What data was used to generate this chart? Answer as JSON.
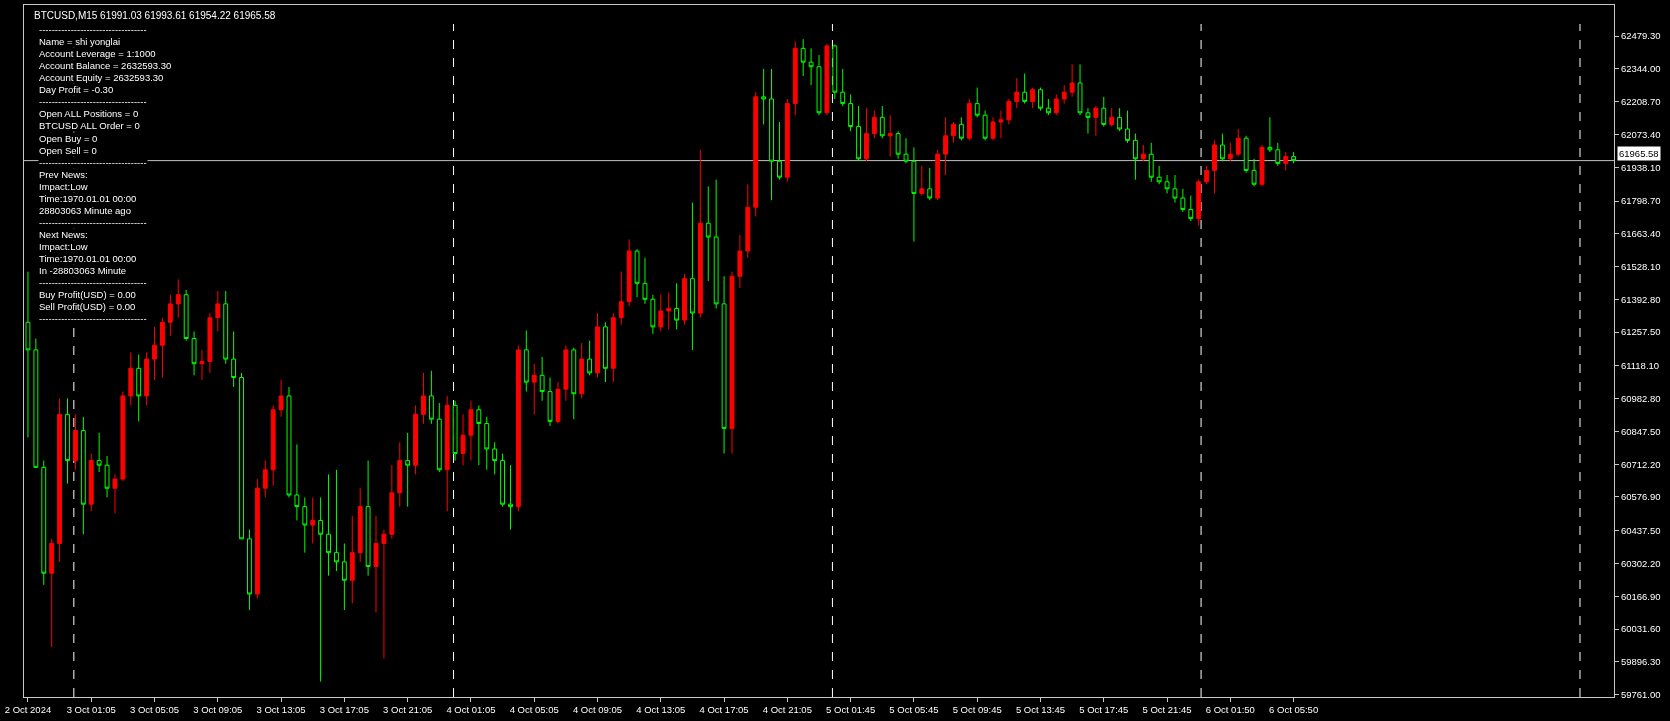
{
  "chart_data": {
    "type": "candlestick",
    "title": "BTCUSD,M15 61991.03 61993.61 61954.22 61965.58",
    "categories": [
      "2 Oct 2024",
      null,
      null,
      null,
      null,
      null,
      null,
      null,
      "3 Oct 01:05",
      null,
      null,
      null,
      null,
      null,
      null,
      null,
      "3 Oct 05:05",
      null,
      null,
      null,
      null,
      null,
      null,
      null,
      "3 Oct 09:05",
      null,
      null,
      null,
      null,
      null,
      null,
      null,
      "3 Oct 13:05",
      null,
      null,
      null,
      null,
      null,
      null,
      null,
      "3 Oct 17:05",
      null,
      null,
      null,
      null,
      null,
      null,
      null,
      "3 Oct 21:05",
      null,
      null,
      null,
      null,
      null,
      null,
      null,
      "4 Oct 01:05",
      null,
      null,
      null,
      null,
      null,
      null,
      null,
      "4 Oct 05:05",
      null,
      null,
      null,
      null,
      null,
      null,
      null,
      "4 Oct 09:05",
      null,
      null,
      null,
      null,
      null,
      null,
      null,
      "4 Oct 13:05",
      null,
      null,
      null,
      null,
      null,
      null,
      null,
      "4 Oct 17:05",
      null,
      null,
      null,
      null,
      null,
      null,
      null,
      "4 Oct 21:05",
      null,
      null,
      null,
      null,
      null,
      null,
      null,
      "5 Oct 01:45",
      null,
      null,
      null,
      null,
      null,
      null,
      null,
      "5 Oct 05:45",
      null,
      null,
      null,
      null,
      null,
      null,
      null,
      "5 Oct 09:45",
      null,
      null,
      null,
      null,
      null,
      null,
      null,
      "5 Oct 13:45",
      null,
      null,
      null,
      null,
      null,
      null,
      null,
      "5 Oct 17:45",
      null,
      null,
      null,
      null,
      null,
      null,
      null,
      "5 Oct 21:45",
      null,
      null,
      null,
      null,
      null,
      null,
      null,
      "6 Oct 01:50",
      null,
      null,
      null,
      null,
      null,
      null,
      null,
      "6 Oct 05:50",
      null,
      null,
      null,
      null,
      null,
      null,
      null,
      null,
      null,
      null,
      null,
      null,
      null,
      null,
      null,
      null,
      null,
      null,
      null,
      null,
      null,
      null,
      null,
      null,
      null,
      null,
      null,
      null,
      null,
      null,
      null,
      null,
      null,
      null,
      null,
      null,
      null,
      null,
      null,
      null
    ],
    "ohlc": [
      [
        61298,
        61507,
        60823,
        61184
      ],
      [
        61184,
        61231,
        60699,
        60699
      ],
      [
        60699,
        60727,
        60214,
        60262
      ],
      [
        60262,
        60404,
        59957,
        60385
      ],
      [
        60385,
        60984,
        60309,
        60918
      ],
      [
        60918,
        60984,
        60632,
        60727
      ],
      [
        60727,
        60918,
        60689,
        60851
      ],
      [
        60851,
        60908,
        60423,
        60547
      ],
      [
        60547,
        60756,
        60518,
        60727
      ],
      [
        60727,
        60842,
        60680,
        60708
      ],
      [
        60708,
        60746,
        60575,
        60613
      ],
      [
        60613,
        60670,
        60509,
        60651
      ],
      [
        60651,
        61012,
        60642,
        60994
      ],
      [
        60994,
        61174,
        60955,
        61108
      ],
      [
        61108,
        61165,
        60889,
        60994
      ],
      [
        60994,
        61174,
        60955,
        61146
      ],
      [
        61146,
        61279,
        61060,
        61203
      ],
      [
        61203,
        61317,
        61070,
        61298
      ],
      [
        61298,
        61412,
        61241,
        61374
      ],
      [
        61374,
        61475,
        61317,
        61412
      ],
      [
        61412,
        61431,
        61222,
        61231
      ],
      [
        61231,
        61260,
        61079,
        61127
      ],
      [
        61127,
        61184,
        61060,
        61136
      ],
      [
        61136,
        61336,
        61089,
        61317
      ],
      [
        61317,
        61427,
        61260,
        61374
      ],
      [
        61374,
        61427,
        61127,
        61146
      ],
      [
        61146,
        61260,
        61031,
        61070
      ],
      [
        61070,
        61089,
        60404,
        60404
      ],
      [
        60404,
        60442,
        60110,
        60176
      ],
      [
        60176,
        60651,
        60157,
        60613
      ],
      [
        60613,
        60727,
        60575,
        60689
      ],
      [
        60689,
        60955,
        60623,
        60937
      ],
      [
        60937,
        61060,
        60908,
        60994
      ],
      [
        60994,
        61031,
        60575,
        60585
      ],
      [
        60585,
        60794,
        60480,
        60537
      ],
      [
        60537,
        60575,
        60347,
        60461
      ],
      [
        60461,
        60575,
        60385,
        60480
      ],
      [
        60480,
        60575,
        59815,
        60423
      ],
      [
        60423,
        60670,
        60252,
        60347
      ],
      [
        60347,
        60689,
        60271,
        60309
      ],
      [
        60309,
        60385,
        60110,
        60233
      ],
      [
        60233,
        60499,
        60138,
        60347
      ],
      [
        60347,
        60613,
        60309,
        60537
      ],
      [
        60537,
        60727,
        60252,
        60290
      ],
      [
        60290,
        60499,
        60100,
        60385
      ],
      [
        60385,
        60442,
        59910,
        60423
      ],
      [
        60423,
        60708,
        60404,
        60594
      ],
      [
        60594,
        60803,
        60537,
        60727
      ],
      [
        60727,
        60842,
        60537,
        60708
      ],
      [
        60708,
        60955,
        60670,
        60918
      ],
      [
        60918,
        61089,
        60879,
        60994
      ],
      [
        60994,
        61098,
        60879,
        60898
      ],
      [
        60898,
        60965,
        60680,
        60689
      ],
      [
        60689,
        60994,
        60518,
        60955
      ],
      [
        60955,
        60974,
        60727,
        60756
      ],
      [
        60756,
        60918,
        60708,
        60832
      ],
      [
        60832,
        60974,
        60727,
        60937
      ],
      [
        60937,
        60955,
        60708,
        60880
      ],
      [
        60880,
        60908,
        60689,
        60775
      ],
      [
        60775,
        60803,
        60670,
        60727
      ],
      [
        60727,
        60756,
        60537,
        60547
      ],
      [
        60547,
        60708,
        60442,
        60537
      ],
      [
        60537,
        61203,
        60518,
        61184
      ],
      [
        61184,
        61264,
        61012,
        61051
      ],
      [
        61051,
        61127,
        60918,
        61079
      ],
      [
        61079,
        61155,
        60974,
        61012
      ],
      [
        61012,
        61070,
        60870,
        60889
      ],
      [
        60889,
        61051,
        60880,
        61022
      ],
      [
        61022,
        61203,
        60974,
        61184
      ],
      [
        61184,
        61193,
        60898,
        61003
      ],
      [
        61003,
        61212,
        60984,
        61146
      ],
      [
        61146,
        61222,
        61079,
        61089
      ],
      [
        61089,
        61336,
        61070,
        61279
      ],
      [
        61279,
        61298,
        61051,
        61108
      ],
      [
        61108,
        61336,
        61051,
        61317
      ],
      [
        61317,
        61507,
        61288,
        61383
      ],
      [
        61383,
        61640,
        61364,
        61592
      ],
      [
        61592,
        61600,
        61402,
        61459
      ],
      [
        61459,
        61564,
        61374,
        61393
      ],
      [
        61393,
        61412,
        61250,
        61279
      ],
      [
        61279,
        61412,
        61260,
        61345
      ],
      [
        61345,
        61421,
        61269,
        61355
      ],
      [
        61355,
        61459,
        61269,
        61307
      ],
      [
        61307,
        61497,
        61288,
        61478
      ],
      [
        61478,
        61792,
        61184,
        61336
      ],
      [
        61336,
        62011,
        61317,
        61707
      ],
      [
        61707,
        61859,
        61469,
        61650
      ],
      [
        61650,
        61887,
        61355,
        61374
      ],
      [
        61374,
        61488,
        60756,
        60860
      ],
      [
        60860,
        61507,
        60756,
        61488
      ],
      [
        61488,
        61659,
        61440,
        61592
      ],
      [
        61592,
        61868,
        61564,
        61773
      ],
      [
        61773,
        62248,
        61735,
        62229
      ],
      [
        62229,
        62344,
        62115,
        62220
      ],
      [
        62220,
        62344,
        61802,
        61963
      ],
      [
        61963,
        62125,
        61887,
        61897
      ],
      [
        61897,
        62220,
        61878,
        62201
      ],
      [
        62201,
        62458,
        62153,
        62429
      ],
      [
        62429,
        62467,
        62315,
        62372
      ],
      [
        62372,
        62429,
        62277,
        62353
      ],
      [
        62353,
        62401,
        62153,
        62163
      ],
      [
        62163,
        62448,
        62153,
        62439
      ],
      [
        62439,
        62445,
        62220,
        62248
      ],
      [
        62248,
        62344,
        62191,
        62201
      ],
      [
        62201,
        62239,
        62087,
        62106
      ],
      [
        62106,
        62191,
        61963,
        61973
      ],
      [
        61973,
        62182,
        61963,
        62077
      ],
      [
        62077,
        62172,
        62058,
        62144
      ],
      [
        62144,
        62191,
        62058,
        62068
      ],
      [
        62068,
        62153,
        61982,
        62077
      ],
      [
        62077,
        62087,
        61973,
        61992
      ],
      [
        61992,
        62058,
        61954,
        61963
      ],
      [
        61963,
        62020,
        61631,
        61830
      ],
      [
        61830,
        61944,
        61821,
        61849
      ],
      [
        61849,
        61935,
        61802,
        61811
      ],
      [
        61811,
        62011,
        61802,
        61992
      ],
      [
        61992,
        62144,
        61906,
        62068
      ],
      [
        62068,
        62125,
        62039,
        62115
      ],
      [
        62115,
        62144,
        62049,
        62058
      ],
      [
        62058,
        62220,
        62049,
        62201
      ],
      [
        62201,
        62267,
        62144,
        62153
      ],
      [
        62153,
        62172,
        62049,
        62058
      ],
      [
        62058,
        62144,
        62049,
        62125
      ],
      [
        62125,
        62172,
        62058,
        62134
      ],
      [
        62134,
        62220,
        62115,
        62210
      ],
      [
        62210,
        62306,
        62182,
        62248
      ],
      [
        62248,
        62325,
        62201,
        62210
      ],
      [
        62210,
        62267,
        62182,
        62258
      ],
      [
        62258,
        62267,
        62172,
        62182
      ],
      [
        62182,
        62220,
        62153,
        62163
      ],
      [
        62163,
        62239,
        62153,
        62220
      ],
      [
        62220,
        62277,
        62201,
        62248
      ],
      [
        62248,
        62363,
        62229,
        62286
      ],
      [
        62286,
        62363,
        62153,
        62163
      ],
      [
        62163,
        62182,
        62077,
        62144
      ],
      [
        62144,
        62191,
        62068,
        62182
      ],
      [
        62182,
        62229,
        62106,
        62115
      ],
      [
        62115,
        62182,
        62106,
        62144
      ],
      [
        62144,
        62182,
        62087,
        62096
      ],
      [
        62096,
        62172,
        62039,
        62049
      ],
      [
        62049,
        62077,
        61887,
        61973
      ],
      [
        61973,
        62030,
        61963,
        61992
      ],
      [
        61992,
        62039,
        61878,
        61897
      ],
      [
        61897,
        61944,
        61868,
        61878
      ],
      [
        61878,
        61906,
        61830,
        61849
      ],
      [
        61849,
        61906,
        61792,
        61811
      ],
      [
        61811,
        61849,
        61754,
        61764
      ],
      [
        61764,
        61821,
        61716,
        61726
      ],
      [
        61726,
        61887,
        61697,
        61878
      ],
      [
        61878,
        61944,
        61868,
        61925
      ],
      [
        61925,
        62049,
        61830,
        62030
      ],
      [
        62030,
        62077,
        61963,
        61973
      ],
      [
        61973,
        62039,
        61963,
        61992
      ],
      [
        61992,
        62096,
        61982,
        62058
      ],
      [
        62058,
        62068,
        61916,
        61925
      ],
      [
        61925,
        61973,
        61859,
        61868
      ],
      [
        61868,
        62030,
        61859,
        62020
      ],
      [
        62020,
        62144,
        62001,
        62010
      ],
      [
        62010,
        62039,
        61944,
        61954
      ],
      [
        61954,
        62001,
        61925,
        61982
      ],
      [
        61982,
        62001,
        61954,
        61965.58
      ],
      null,
      null,
      null,
      null,
      null,
      null,
      null,
      null,
      null,
      null,
      null,
      null,
      null,
      null,
      null,
      null,
      null,
      null,
      null,
      null,
      null,
      null,
      null,
      null,
      null,
      null,
      null,
      null,
      null,
      null,
      null,
      null,
      null,
      null,
      null,
      null,
      null,
      null,
      null,
      null
    ],
    "colors": [
      "#00ff00",
      "#00ff00",
      "#00ff00",
      "#ff0000",
      "#ff0000",
      "#00ff00",
      "#ff0000",
      "#00ff00",
      "#ff0000",
      "#00ff00",
      "#00ff00",
      "#ff0000",
      "#ff0000",
      "#ff0000",
      "#00ff00",
      "#ff0000",
      "#ff0000",
      "#ff0000",
      "#ff0000",
      "#ff0000",
      "#00ff00",
      "#00ff00",
      "#ff0000",
      "#ff0000",
      "#ff0000",
      "#00ff00",
      "#00ff00",
      "#00ff00",
      "#00ff00",
      "#ff0000",
      "#ff0000",
      "#ff0000",
      "#ff0000",
      "#00ff00",
      "#00ff00",
      "#00ff00",
      "#ff0000",
      "#00ff00",
      "#00ff00",
      "#00ff00",
      "#00ff00",
      "#ff0000",
      "#ff0000",
      "#00ff00",
      "#ff0000",
      "#ff0000",
      "#ff0000",
      "#ff0000",
      "#00ff00",
      "#ff0000",
      "#ff0000",
      "#00ff00",
      "#00ff00",
      "#ff0000",
      "#00ff00",
      "#ff0000",
      "#ff0000",
      "#00ff00",
      "#00ff00",
      "#00ff00",
      "#00ff00",
      "#00ff00",
      "#ff0000",
      "#00ff00",
      "#ff0000",
      "#00ff00",
      "#00ff00",
      "#ff0000",
      "#ff0000",
      "#00ff00",
      "#ff0000",
      "#00ff00",
      "#ff0000",
      "#00ff00",
      "#ff0000",
      "#ff0000",
      "#ff0000",
      "#00ff00",
      "#00ff00",
      "#00ff00",
      "#ff0000",
      "#ff0000",
      "#00ff00",
      "#ff0000",
      "#00ff00",
      "#ff0000",
      "#00ff00",
      "#00ff00",
      "#00ff00",
      "#ff0000",
      "#ff0000",
      "#ff0000",
      "#ff0000",
      "#00ff00",
      "#00ff00",
      "#00ff00",
      "#ff0000",
      "#ff0000",
      "#00ff00",
      "#00ff00",
      "#00ff00",
      "#ff0000",
      "#00ff00",
      "#00ff00",
      "#00ff00",
      "#00ff00",
      "#ff0000",
      "#ff0000",
      "#00ff00",
      "#ff0000",
      "#00ff00",
      "#00ff00",
      "#00ff00",
      "#ff0000",
      "#00ff00",
      "#ff0000",
      "#ff0000",
      "#ff0000",
      "#00ff00",
      "#ff0000",
      "#00ff00",
      "#00ff00",
      "#ff0000",
      "#ff0000",
      "#ff0000",
      "#ff0000",
      "#00ff00",
      "#ff0000",
      "#00ff00",
      "#00ff00",
      "#ff0000",
      "#ff0000",
      "#ff0000",
      "#00ff00",
      "#00ff00",
      "#ff0000",
      "#00ff00",
      "#ff0000",
      "#00ff00",
      "#00ff00",
      "#00ff00",
      "#ff0000",
      "#00ff00",
      "#00ff00",
      "#00ff00",
      "#00ff00",
      "#00ff00",
      "#00ff00",
      "#ff0000",
      "#ff0000",
      "#ff0000",
      "#00ff00",
      "#ff0000",
      "#ff0000",
      "#00ff00",
      "#00ff00",
      "#ff0000",
      "#00ff00",
      "#00ff00",
      "#ff0000",
      "#00ff00",
      null,
      null,
      null,
      null,
      null,
      null,
      null,
      null,
      null,
      null,
      null,
      null,
      null,
      null,
      null,
      null,
      null,
      null,
      null,
      null,
      null,
      null,
      null,
      null,
      null,
      null,
      null,
      null,
      null,
      null,
      null,
      null,
      null,
      null,
      null,
      null,
      null,
      null,
      null,
      null
    ],
    "ylim": [
      59751,
      62608
    ],
    "yticks": [
      {
        "value": 59761,
        "label": "59761.00"
      },
      {
        "value": 59896.3,
        "label": "59896.30"
      },
      {
        "value": 60031.6,
        "label": "60031.60"
      },
      {
        "value": 60166.9,
        "label": "60166.90"
      },
      {
        "value": 60302.2,
        "label": "60302.20"
      },
      {
        "value": 60437.5,
        "label": "60437.50"
      },
      {
        "value": 60576.9,
        "label": "60576.90"
      },
      {
        "value": 60712.2,
        "label": "60712.20"
      },
      {
        "value": 60847.5,
        "label": "60847.50"
      },
      {
        "value": 60982.8,
        "label": "60982.80"
      },
      {
        "value": 61118.1,
        "label": "61118.10"
      },
      {
        "value": 61257.5,
        "label": "61257.50"
      },
      {
        "value": 61392.8,
        "label": "61392.80"
      },
      {
        "value": 61528.1,
        "label": "61528.10"
      },
      {
        "value": 61663.4,
        "label": "61663.40"
      },
      {
        "value": 61798.7,
        "label": "61798.70"
      },
      {
        "value": 61938.1,
        "label": "61938.10"
      },
      {
        "value": 62073.4,
        "label": "62073.40"
      },
      {
        "value": 62208.7,
        "label": "62208.70"
      },
      {
        "value": 62344,
        "label": "62344.00"
      },
      {
        "value": 62479.3,
        "label": "62479.30"
      }
    ],
    "ref_lines": [
      {
        "axis": "y",
        "value": 61965.58,
        "label": "61965.58",
        "color": "#c0c0c0",
        "line_style": "solid"
      }
    ],
    "annotations": [
      "----------------------------------",
      "Name = shi yonglai",
      "Account Leverage = 1:1000",
      "Account Balance = 2632593.30",
      "Account Equity = 2632593.30",
      "Day Profit = -0.30",
      "----------------------------------",
      "Open ALL Positions = 0",
      "BTCUSD ALL Order = 0",
      "Open Buy = 0",
      "Open Sell = 0",
      "----------------------------------",
      "Prev News:",
      "Impact:Low",
      "Time:1970.01.01 00:00",
      "28803063 Minute ago",
      "----------------------------------",
      "Next News:",
      "Impact:Low",
      "Time:1970.01.01 00:00",
      "In -28803063 Minute",
      "----------------------------------",
      "Buy Profit(USD) = 0.00",
      "Sell Profit(USD) = 0.00",
      "----------------------------------"
    ]
  }
}
